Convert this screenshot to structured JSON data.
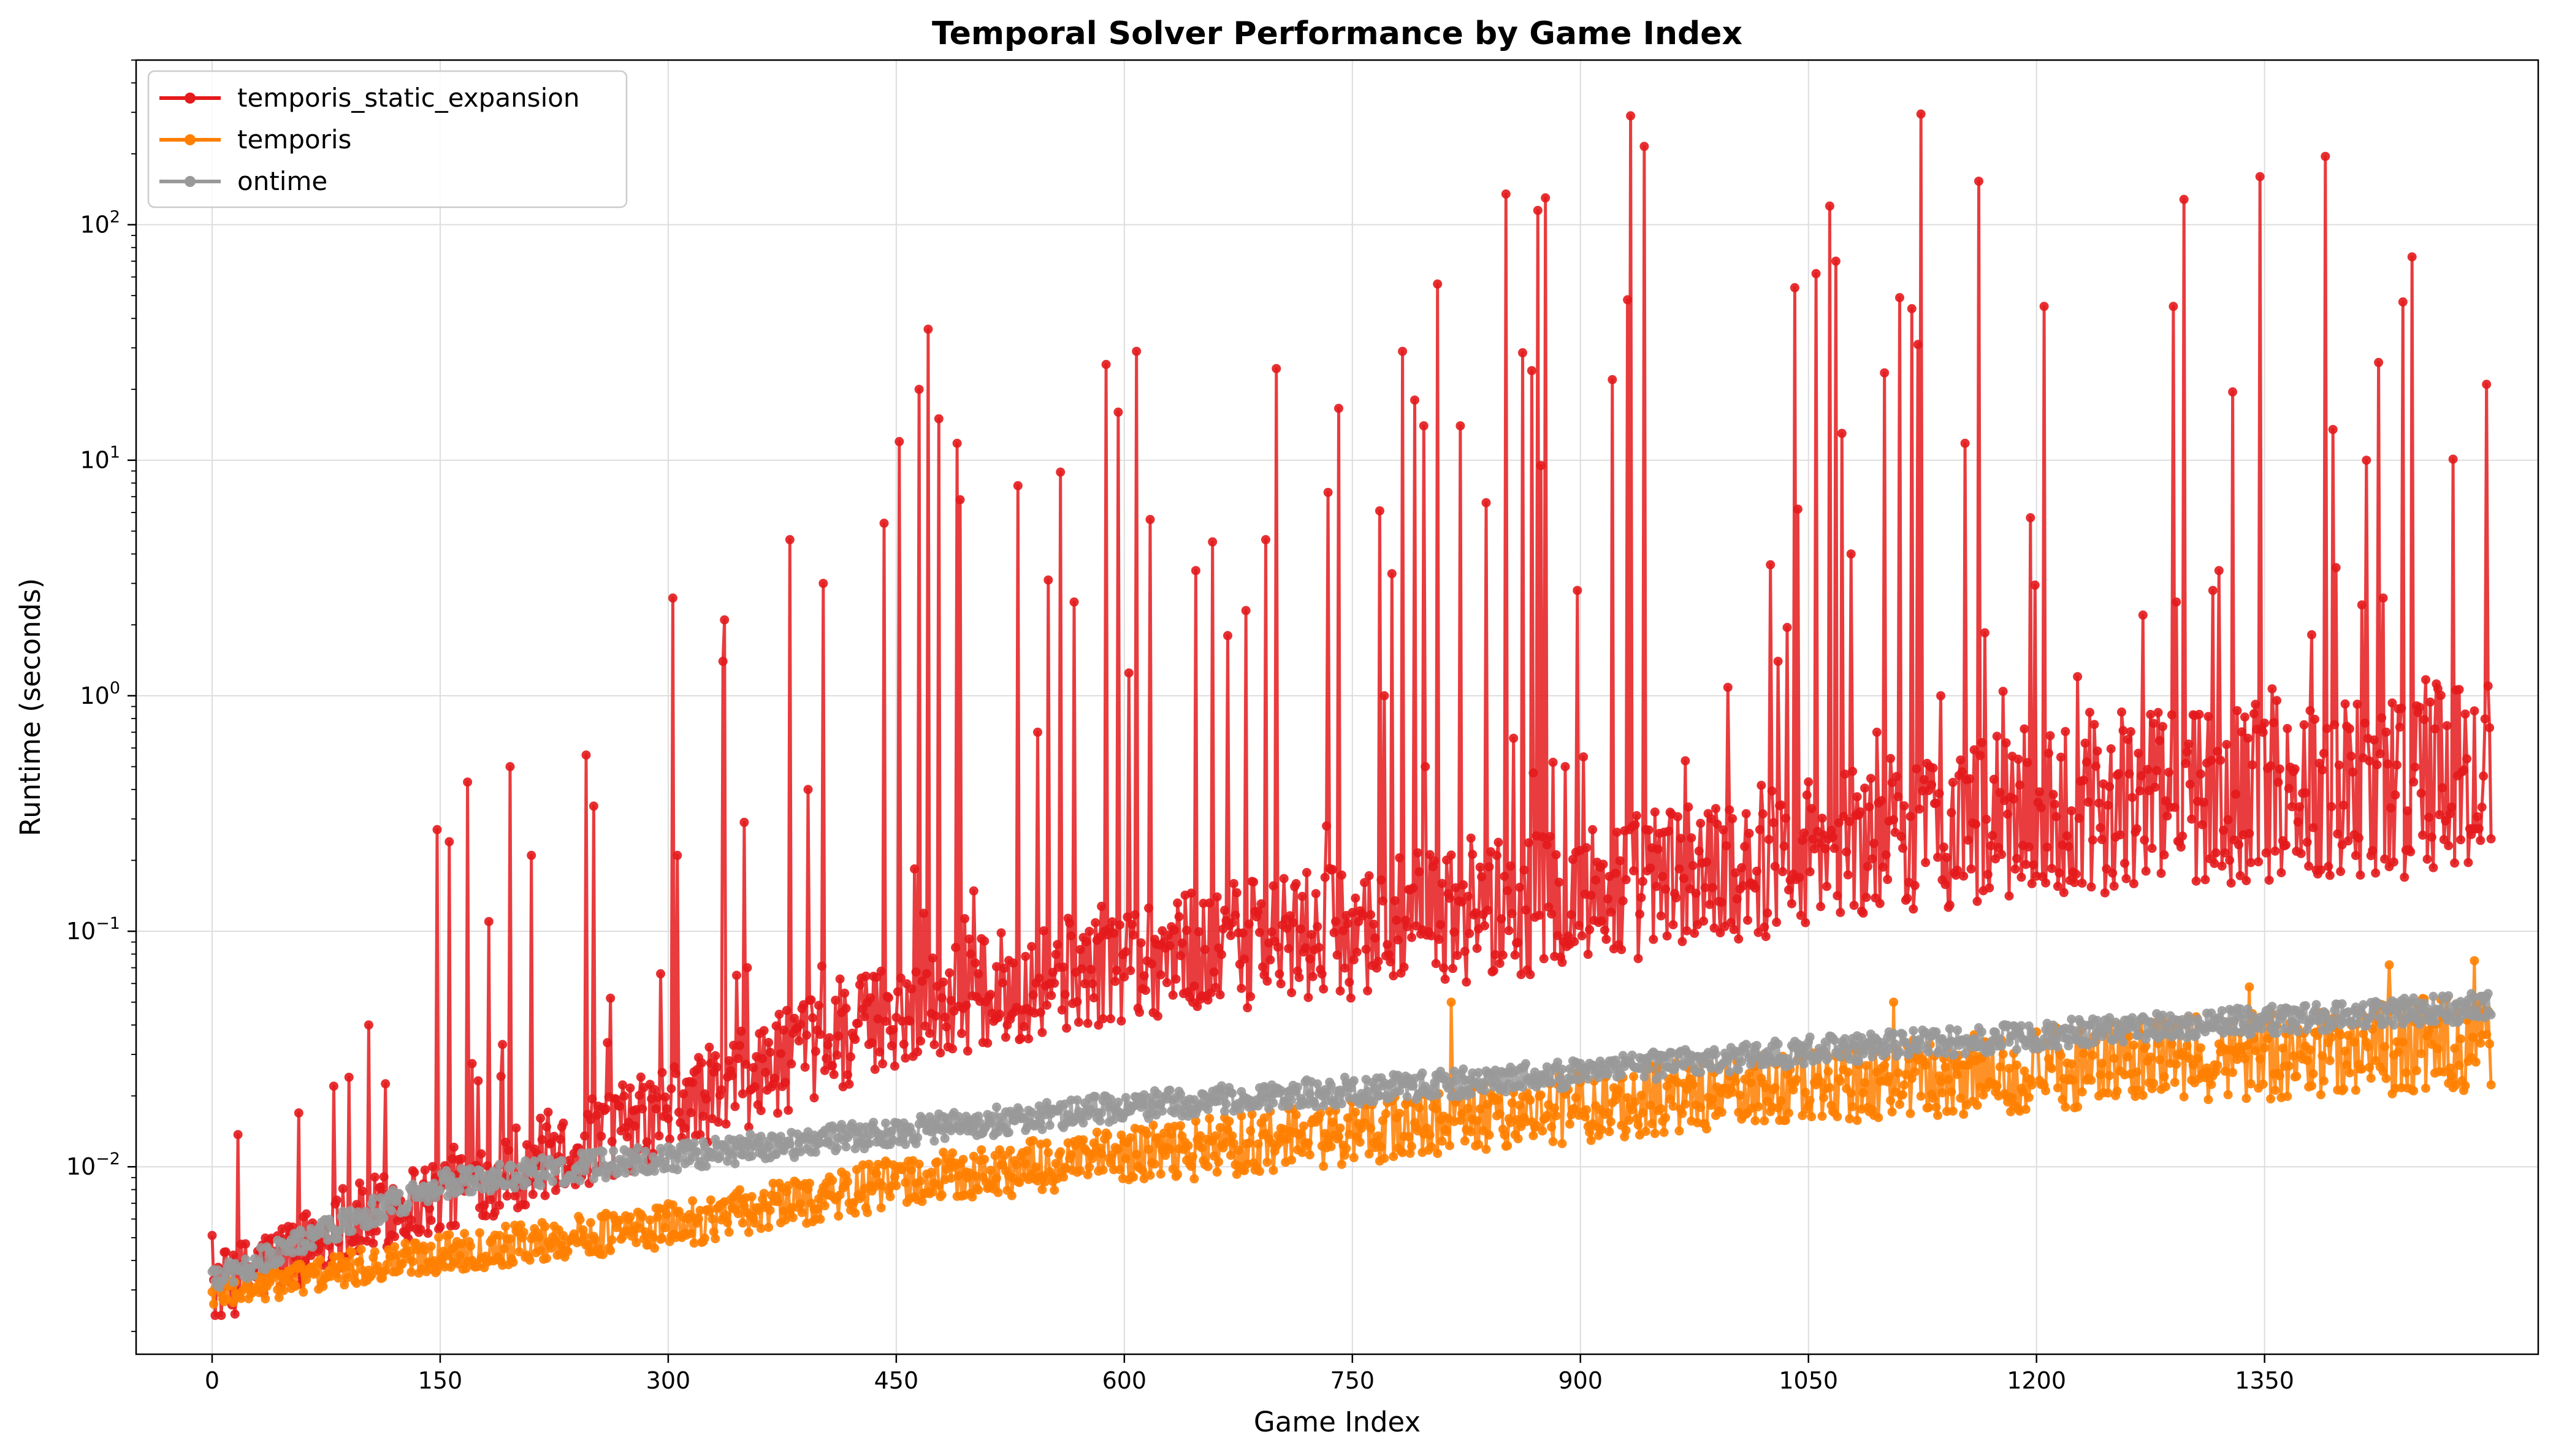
{
  "chart_data": {
    "type": "line",
    "title": "Temporal Solver Performance by Game Index",
    "xlabel": "Game Index",
    "ylabel": "Runtime (seconds)",
    "x_scale": "linear",
    "y_scale": "log",
    "xlim": [
      -50,
      1530
    ],
    "ylim": [
      0.0016,
      500
    ],
    "x_ticks": [
      0,
      150,
      300,
      450,
      600,
      750,
      900,
      1050,
      1200,
      1350
    ],
    "x_tick_labels": [
      "0",
      "150",
      "300",
      "450",
      "600",
      "750",
      "900",
      "1050",
      "1200",
      "1350"
    ],
    "y_ticks": [
      0.01,
      0.1,
      1,
      10,
      100
    ],
    "y_tick_labels": [
      {
        "base": "10",
        "exp": "−2"
      },
      {
        "base": "10",
        "exp": "−1"
      },
      {
        "base": "10",
        "exp": "0"
      },
      {
        "base": "10",
        "exp": "1"
      },
      {
        "base": "10",
        "exp": "2"
      }
    ],
    "grid": true,
    "legend_position": "top-left",
    "n_points": 1500,
    "series": [
      {
        "name": "temporis_static_expansion",
        "color": "#e41a1c",
        "baseline_knots": [
          [
            0,
            0.003
          ],
          [
            100,
            0.006
          ],
          [
            200,
            0.01
          ],
          [
            300,
            0.017
          ],
          [
            450,
            0.045
          ],
          [
            600,
            0.075
          ],
          [
            750,
            0.1
          ],
          [
            900,
            0.14
          ],
          [
            1050,
            0.22
          ],
          [
            1200,
            0.32
          ],
          [
            1350,
            0.4
          ],
          [
            1500,
            0.45
          ]
        ],
        "spikes": [
          [
            80,
            0.022
          ],
          [
            90,
            0.024
          ],
          [
            103,
            0.04
          ],
          [
            148,
            0.27
          ],
          [
            156,
            0.24
          ],
          [
            168,
            0.43
          ],
          [
            182,
            0.11
          ],
          [
            196,
            0.5
          ],
          [
            210,
            0.21
          ],
          [
            246,
            0.56
          ],
          [
            251,
            0.34
          ],
          [
            262,
            0.052
          ],
          [
            303,
            2.6
          ],
          [
            306,
            0.21
          ],
          [
            336,
            1.4
          ],
          [
            337,
            2.1
          ],
          [
            345,
            0.065
          ],
          [
            350,
            0.29
          ],
          [
            380,
            4.6
          ],
          [
            392,
            0.4
          ],
          [
            402,
            3.0
          ],
          [
            442,
            5.4
          ],
          [
            452,
            12.0
          ],
          [
            465,
            20.0
          ],
          [
            471,
            36.0
          ],
          [
            478,
            15.0
          ],
          [
            490,
            11.8
          ],
          [
            492,
            6.8
          ],
          [
            530,
            7.8
          ],
          [
            543,
            0.7
          ],
          [
            550,
            3.1
          ],
          [
            558,
            8.9
          ],
          [
            567,
            2.5
          ],
          [
            588,
            25.5
          ],
          [
            596,
            16.0
          ],
          [
            603,
            1.25
          ],
          [
            608,
            29.0
          ],
          [
            617,
            5.6
          ],
          [
            647,
            3.4
          ],
          [
            658,
            4.5
          ],
          [
            668,
            1.8
          ],
          [
            680,
            2.3
          ],
          [
            693,
            4.6
          ],
          [
            700,
            24.5
          ],
          [
            733,
            0.28
          ],
          [
            734,
            7.3
          ],
          [
            741,
            16.6
          ],
          [
            768,
            6.1
          ],
          [
            771,
            1.0
          ],
          [
            776,
            3.3
          ],
          [
            783,
            29.0
          ],
          [
            791,
            18.0
          ],
          [
            797,
            14.0
          ],
          [
            798,
            0.5
          ],
          [
            806,
            56.0
          ],
          [
            821,
            14.0
          ],
          [
            838,
            6.6
          ],
          [
            851,
            135.0
          ],
          [
            856,
            0.66
          ],
          [
            862,
            28.6
          ],
          [
            868,
            24.0
          ],
          [
            872,
            115.0
          ],
          [
            874,
            9.5
          ],
          [
            877,
            130.0
          ],
          [
            890,
            0.5
          ],
          [
            898,
            2.8
          ],
          [
            902,
            0.55
          ],
          [
            921,
            22.0
          ],
          [
            931,
            48.0
          ],
          [
            933,
            290.0
          ],
          [
            942,
            215.0
          ],
          [
            1025,
            3.6
          ],
          [
            1030,
            1.4
          ],
          [
            1036,
            1.95
          ],
          [
            1041,
            54.0
          ],
          [
            1043,
            6.2
          ],
          [
            1055,
            62.0
          ],
          [
            1064,
            120.0
          ],
          [
            1068,
            70.0
          ],
          [
            1072,
            13.0
          ],
          [
            1078,
            4.0
          ],
          [
            1095,
            0.7
          ],
          [
            1100,
            23.5
          ],
          [
            1110,
            49.0
          ],
          [
            1118,
            44.0
          ],
          [
            1122,
            31.0
          ],
          [
            1124,
            295.0
          ],
          [
            1137,
            1.0
          ],
          [
            1153,
            11.8
          ],
          [
            1162,
            153.0
          ],
          [
            1166,
            1.85
          ],
          [
            1196,
            5.7
          ],
          [
            1199,
            2.95
          ],
          [
            1205,
            45.0
          ],
          [
            1235,
            0.85
          ],
          [
            1270,
            2.2
          ],
          [
            1283,
            0.74
          ],
          [
            1290,
            45.0
          ],
          [
            1292,
            2.5
          ],
          [
            1297,
            128.0
          ],
          [
            1303,
            0.83
          ],
          [
            1316,
            2.8
          ],
          [
            1320,
            3.4
          ],
          [
            1329,
            19.5
          ],
          [
            1345,
            0.72
          ],
          [
            1347,
            160.0
          ],
          [
            1355,
            1.07
          ],
          [
            1390,
            195.0
          ],
          [
            1395,
            13.5
          ],
          [
            1397,
            3.5
          ],
          [
            1417,
            10.0
          ],
          [
            1425,
            26.0
          ],
          [
            1428,
            2.6
          ],
          [
            1441,
            47.0
          ],
          [
            1447,
            73.0
          ],
          [
            1456,
            1.17
          ],
          [
            1474,
            10.1
          ],
          [
            1496,
            21.0
          ]
        ]
      },
      {
        "name": "temporis",
        "color": "#ff7f00",
        "baseline_knots": [
          [
            0,
            0.0029
          ],
          [
            150,
            0.0043
          ],
          [
            300,
            0.0056
          ],
          [
            450,
            0.0085
          ],
          [
            600,
            0.011
          ],
          [
            750,
            0.014
          ],
          [
            900,
            0.018
          ],
          [
            1050,
            0.022
          ],
          [
            1200,
            0.026
          ],
          [
            1350,
            0.03
          ],
          [
            1500,
            0.034
          ]
        ],
        "spikes": [
          [
            815,
            0.05
          ],
          [
            1106,
            0.05
          ],
          [
            1340,
            0.058
          ],
          [
            1432,
            0.072
          ],
          [
            1488,
            0.075
          ]
        ]
      },
      {
        "name": "ontime",
        "color": "#999999",
        "baseline_knots": [
          [
            0,
            0.0033
          ],
          [
            150,
            0.0085
          ],
          [
            300,
            0.011
          ],
          [
            450,
            0.014
          ],
          [
            600,
            0.018
          ],
          [
            750,
            0.021
          ],
          [
            900,
            0.025
          ],
          [
            1050,
            0.031
          ],
          [
            1200,
            0.036
          ],
          [
            1350,
            0.042
          ],
          [
            1500,
            0.048
          ]
        ],
        "spikes": []
      }
    ]
  }
}
